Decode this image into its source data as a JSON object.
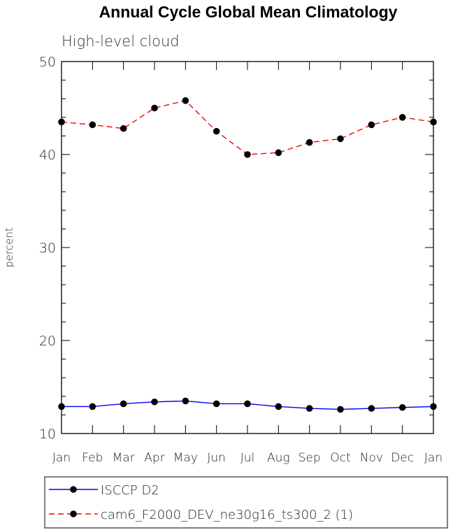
{
  "chart_data": {
    "type": "line",
    "title": "Annual Cycle Global Mean Climatology",
    "subtitle": "High-level cloud",
    "xlabel": "",
    "ylabel": "percent",
    "categories": [
      "Jan",
      "Feb",
      "Mar",
      "Apr",
      "May",
      "Jun",
      "Jul",
      "Aug",
      "Sep",
      "Oct",
      "Nov",
      "Dec",
      "Jan"
    ],
    "ylim": [
      10,
      50
    ],
    "yticks": [
      "10",
      "20",
      "30",
      "40",
      "50"
    ],
    "grid": false,
    "legend_position": "bottom",
    "series": [
      {
        "name": "ISCCP D2",
        "color": "#0000ff",
        "dash": "solid",
        "marker": "filled-circle",
        "values": [
          12.9,
          12.9,
          13.2,
          13.4,
          13.5,
          13.2,
          13.2,
          12.9,
          12.7,
          12.6,
          12.7,
          12.8,
          12.9
        ]
      },
      {
        "name": "cam6_F2000_DEV_ne30g16_ts300_2 (1)",
        "color": "#ff0000",
        "dash": "dashed",
        "marker": "filled-circle",
        "values": [
          43.5,
          43.2,
          42.8,
          45.0,
          45.8,
          42.5,
          40.0,
          40.2,
          41.3,
          41.7,
          43.2,
          44.0,
          43.5
        ]
      }
    ]
  }
}
